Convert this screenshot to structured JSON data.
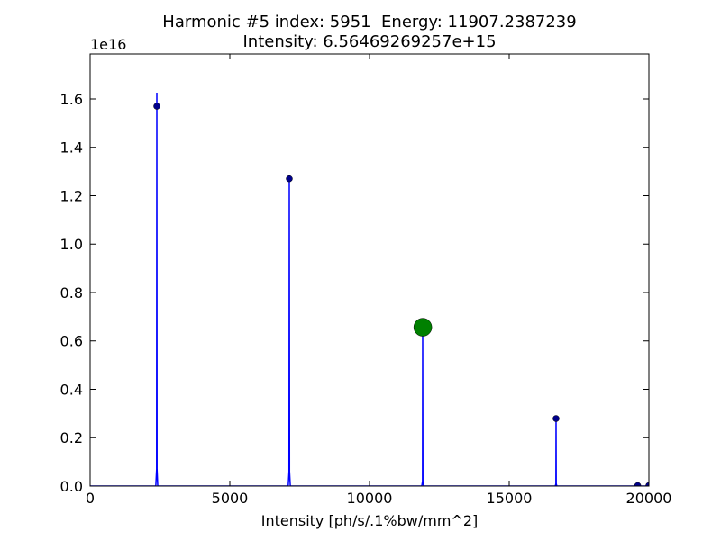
{
  "chart_data": {
    "type": "line",
    "title": [
      "Harmonic #5 index: 5951  Energy: 11907.2387239",
      "Intensity: 6.56469269257e+15"
    ],
    "x_label": "Intensity [ph/s/.1%bw/mm^2]",
    "y_offset_label": "1e16",
    "xlim": [
      0,
      20000
    ],
    "ylim": [
      0,
      1.786
    ],
    "xticks": [
      0,
      5000,
      10000,
      15000,
      20000
    ],
    "yticks": [
      {
        "value": 0,
        "label": "0.0"
      },
      0.2,
      0.4,
      0.6,
      0.8,
      {
        "value": 1,
        "label": "1.0"
      },
      1.2,
      1.4,
      1.6
    ],
    "grid": false,
    "series": [
      {
        "type": "line",
        "color": "#0000ff",
        "x": [
          0,
          2350,
          2380,
          2387,
          2394,
          2420,
          7090,
          7120,
          7129,
          7138,
          7165,
          11870,
          11898,
          11903,
          11910,
          11935,
          16650,
          16672,
          16677,
          16683,
          16705,
          20000
        ],
        "values": [
          0,
          0,
          0.07,
          1.626,
          0.07,
          0,
          0,
          0.06,
          1.269,
          0.06,
          0,
          0,
          0.02,
          0.655,
          0.02,
          0,
          0,
          0.01,
          0.28,
          0.01,
          0,
          0
        ]
      },
      {
        "type": "scatter",
        "color": "#00008b",
        "marker": "small",
        "x": [
          2387,
          7129,
          11903,
          16677,
          19600,
          20000
        ],
        "values": [
          1.57,
          1.27,
          0.656,
          0.279,
          0.002,
          0.002
        ]
      },
      {
        "type": "scatter",
        "color": "#008000",
        "marker": "large",
        "x": [
          11907.2387239
        ],
        "values": [
          0.656469269257
        ]
      }
    ]
  }
}
